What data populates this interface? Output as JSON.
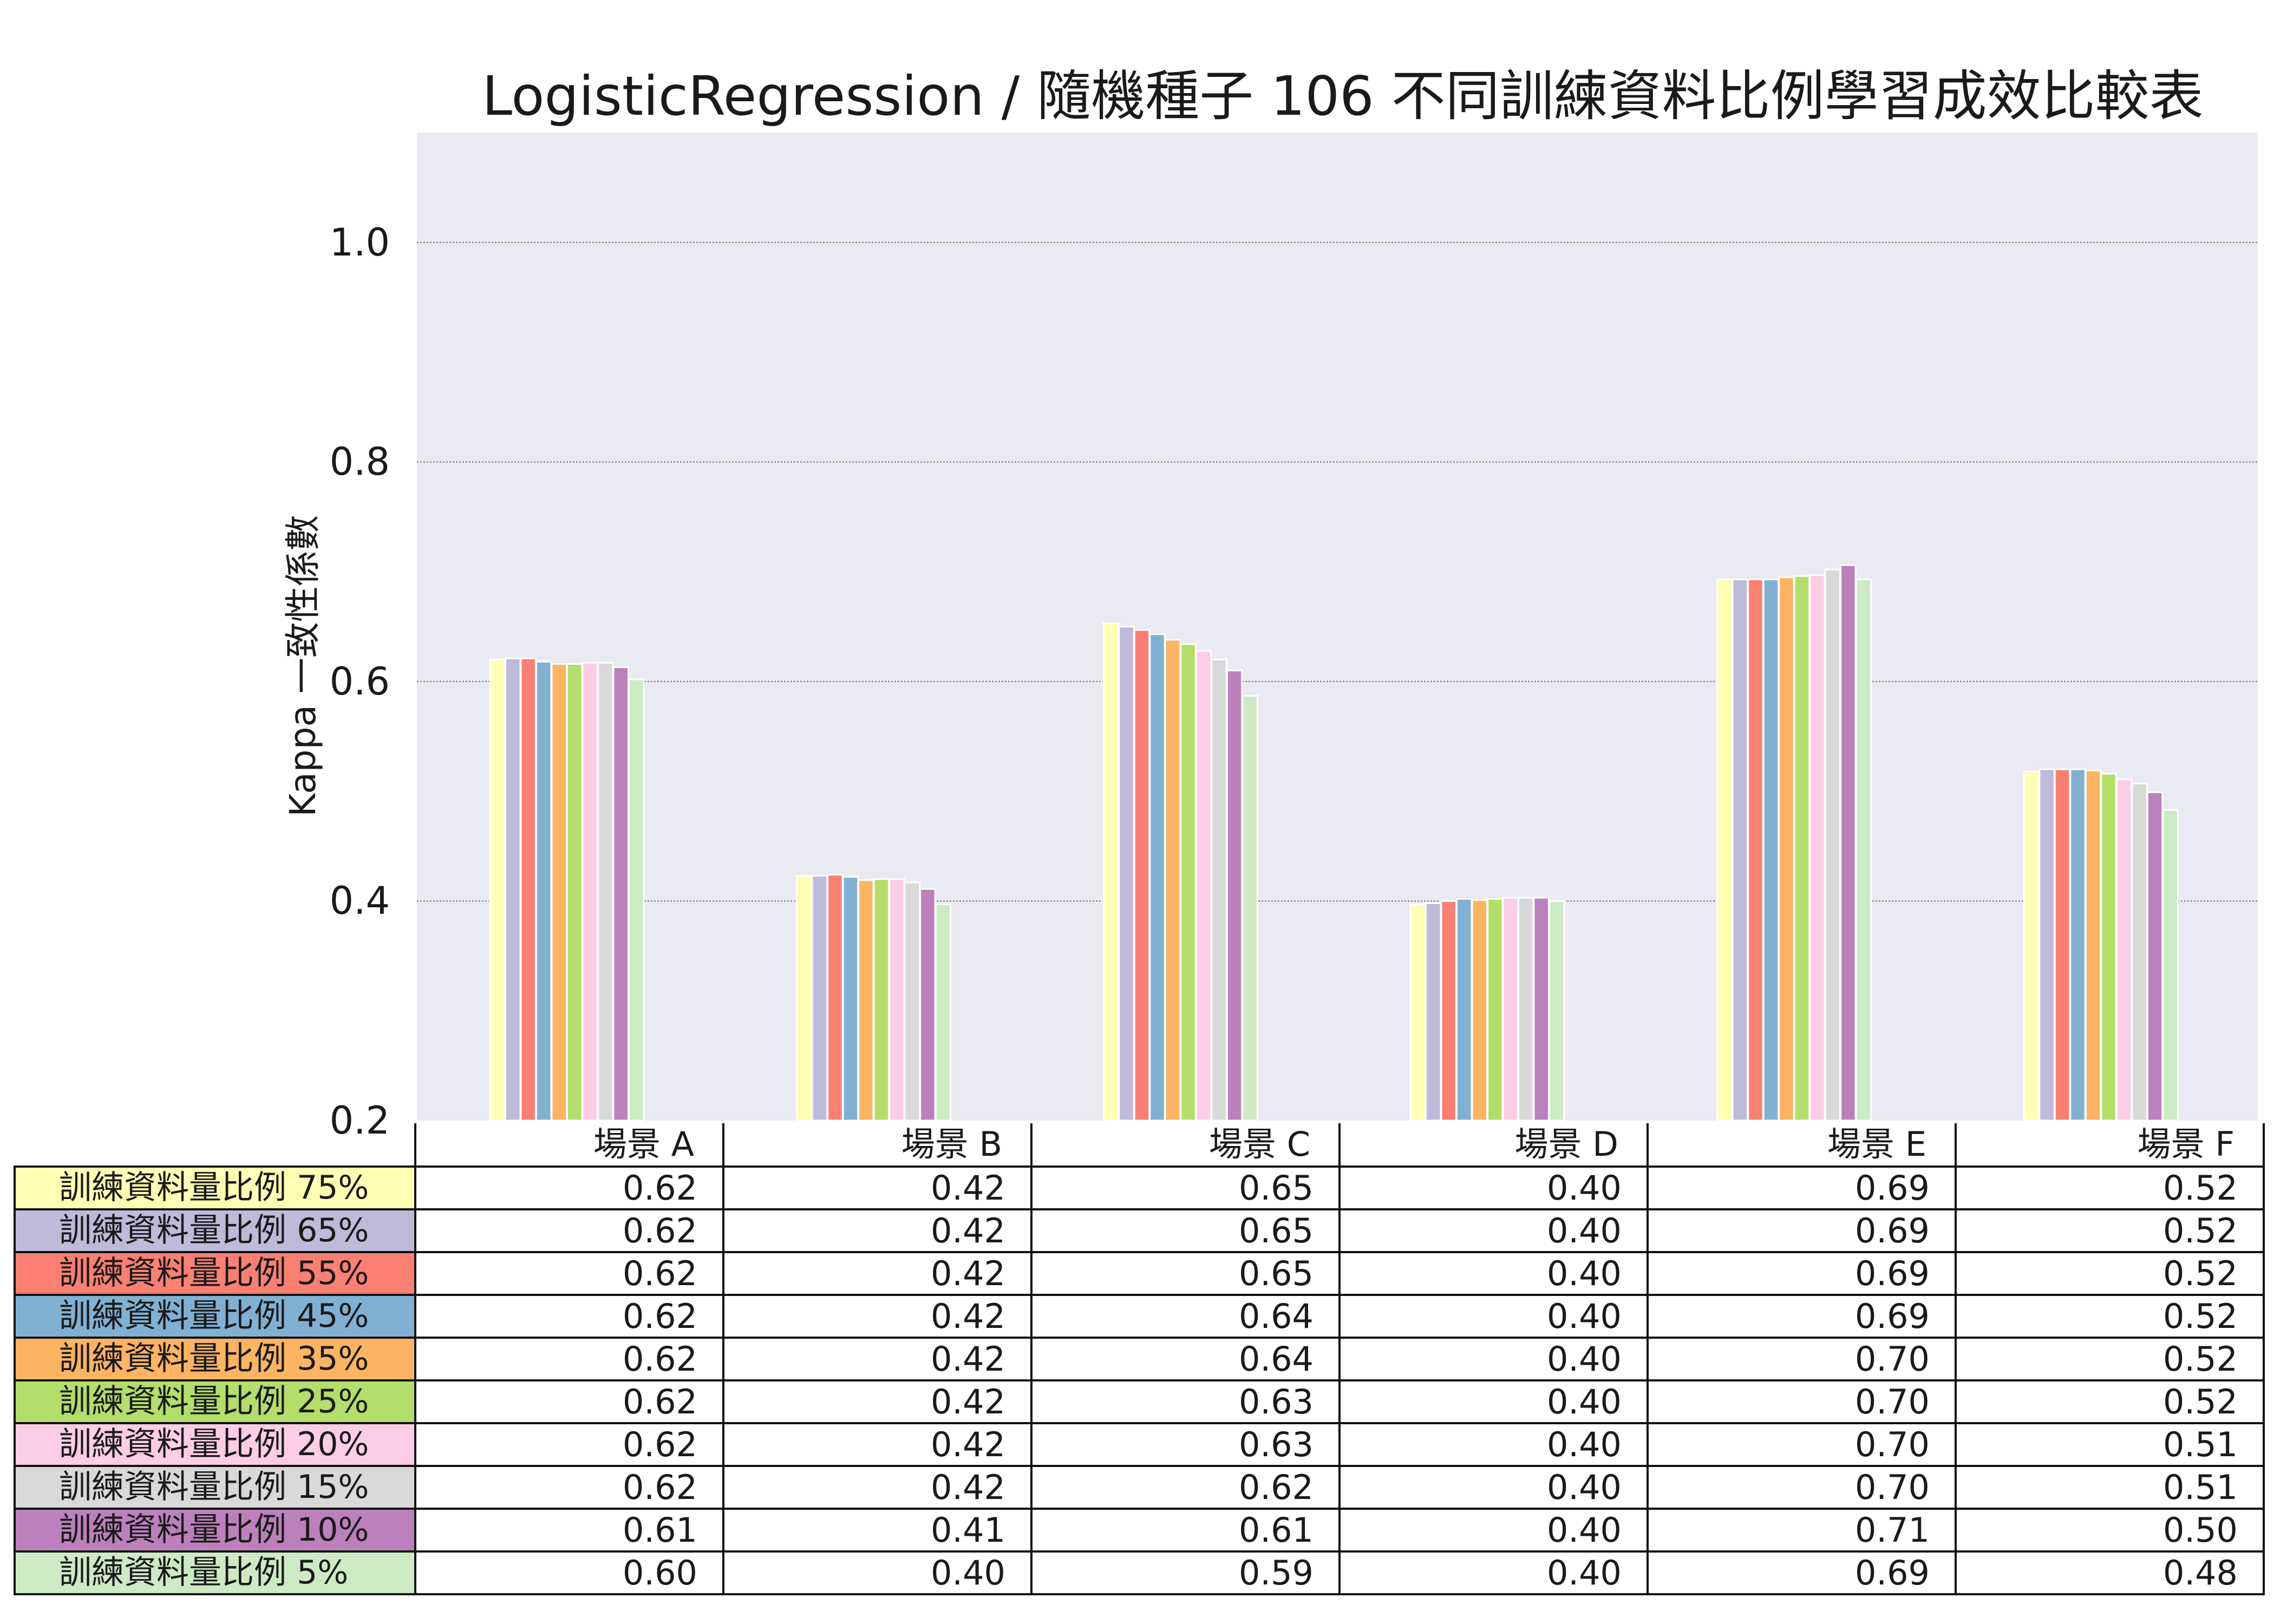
{
  "chart_data": {
    "type": "bar",
    "title": "LogisticRegression / 隨機種子  106 不同訓練資料比例學習成效比較表",
    "xlabel": "",
    "ylabel": "Kappa 一致性係數",
    "ylim": [
      0.2,
      1.1
    ],
    "yticks": [
      "0.2",
      "0.4",
      "0.6",
      "0.8",
      "1.0"
    ],
    "grid": true,
    "legend": "table-below",
    "categories": [
      "場景 A",
      "場景 B",
      "場景 C",
      "場景 D",
      "場景 E",
      "場景 F"
    ],
    "series": [
      {
        "name": "訓練資料量比例 75%",
        "color": "#ffffb3",
        "values": [
          0.62,
          0.423,
          0.653,
          0.397,
          0.693,
          0.518
        ],
        "labels": [
          "0.62",
          "0.42",
          "0.65",
          "0.40",
          "0.69",
          "0.52"
        ]
      },
      {
        "name": "訓練資料量比例 65%",
        "color": "#bebada",
        "values": [
          0.621,
          0.423,
          0.65,
          0.398,
          0.693,
          0.52
        ],
        "labels": [
          "0.62",
          "0.42",
          "0.65",
          "0.40",
          "0.69",
          "0.52"
        ]
      },
      {
        "name": "訓練資料量比例 55%",
        "color": "#fb8072",
        "values": [
          0.621,
          0.424,
          0.647,
          0.4,
          0.693,
          0.52
        ],
        "labels": [
          "0.62",
          "0.42",
          "0.65",
          "0.40",
          "0.69",
          "0.52"
        ]
      },
      {
        "name": "訓練資料量比例 45%",
        "color": "#80b1d3",
        "values": [
          0.618,
          0.422,
          0.643,
          0.402,
          0.693,
          0.52
        ],
        "labels": [
          "0.62",
          "0.42",
          "0.64",
          "0.40",
          "0.69",
          "0.52"
        ]
      },
      {
        "name": "訓練資料量比例 35%",
        "color": "#fdb462",
        "values": [
          0.616,
          0.419,
          0.638,
          0.401,
          0.695,
          0.519
        ],
        "labels": [
          "0.62",
          "0.42",
          "0.64",
          "0.40",
          "0.70",
          "0.52"
        ]
      },
      {
        "name": "訓練資料量比例 25%",
        "color": "#b3de69",
        "values": [
          0.616,
          0.42,
          0.634,
          0.402,
          0.696,
          0.516
        ],
        "labels": [
          "0.62",
          "0.42",
          "0.63",
          "0.40",
          "0.70",
          "0.52"
        ]
      },
      {
        "name": "訓練資料量比例 20%",
        "color": "#fccde5",
        "values": [
          0.617,
          0.42,
          0.628,
          0.403,
          0.697,
          0.511
        ],
        "labels": [
          "0.62",
          "0.42",
          "0.63",
          "0.40",
          "0.70",
          "0.51"
        ]
      },
      {
        "name": "訓練資料量比例 15%",
        "color": "#d9d9d9",
        "values": [
          0.617,
          0.417,
          0.62,
          0.403,
          0.702,
          0.507
        ],
        "labels": [
          "0.62",
          "0.42",
          "0.62",
          "0.40",
          "0.70",
          "0.51"
        ]
      },
      {
        "name": "訓練資料量比例 10%",
        "color": "#bc80bd",
        "values": [
          0.613,
          0.411,
          0.61,
          0.403,
          0.706,
          0.499
        ],
        "labels": [
          "0.61",
          "0.41",
          "0.61",
          "0.40",
          "0.71",
          "0.50"
        ]
      },
      {
        "name": "訓練資料量比例 5%",
        "color": "#ccebc5",
        "values": [
          0.602,
          0.397,
          0.587,
          0.4,
          0.693,
          0.483
        ],
        "labels": [
          "0.60",
          "0.40",
          "0.59",
          "0.40",
          "0.69",
          "0.48"
        ]
      }
    ]
  }
}
